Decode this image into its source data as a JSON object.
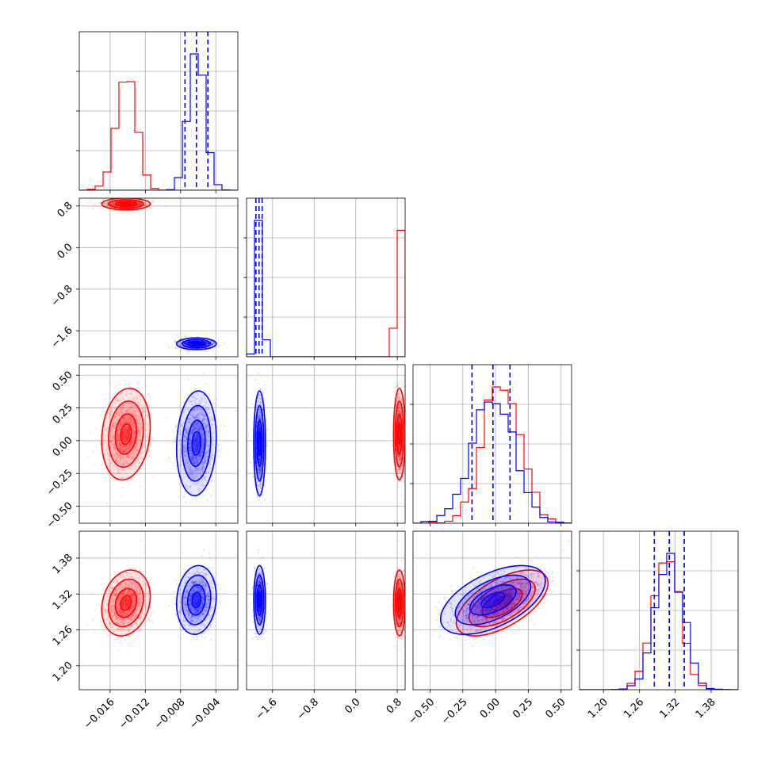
{
  "chart_data": {
    "type": "corner",
    "grid": true,
    "params": [
      {
        "range": [
          -0.0195,
          -0.0015
        ],
        "ticks": [
          -0.016,
          -0.012,
          -0.008,
          -0.004
        ],
        "tick_labels": [
          "−0.016",
          "−0.012",
          "−0.008",
          "−0.004"
        ]
      },
      {
        "range": [
          -2.1,
          0.95
        ],
        "ticks": [
          -1.6,
          -0.8,
          0.0,
          0.8
        ],
        "tick_labels": [
          "−1.6",
          "−0.8",
          "0.0",
          "0.8"
        ]
      },
      {
        "range": [
          -0.63,
          0.58
        ],
        "ticks": [
          -0.5,
          -0.25,
          0.0,
          0.25,
          0.5
        ],
        "tick_labels": [
          "−0.50",
          "−0.25",
          "0.00",
          "0.25",
          "0.50"
        ]
      },
      {
        "range": [
          1.16,
          1.425
        ],
        "ticks": [
          1.2,
          1.26,
          1.32,
          1.38
        ],
        "tick_labels": [
          "1.20",
          "1.26",
          "1.32",
          "1.38"
        ]
      }
    ],
    "series": [
      {
        "color": "#ff0000",
        "mean": [
          -0.0142,
          0.84,
          0.05,
          1.305
        ],
        "sd": [
          0.0011,
          0.045,
          0.14,
          0.022
        ],
        "corr": [
          [
            0,
            2,
            0.15
          ],
          [
            0,
            3,
            0.2
          ],
          [
            2,
            3,
            0.6
          ]
        ],
        "quantiles": null
      },
      {
        "color": "#0000ff",
        "mean": [
          -0.0062,
          -1.85,
          -0.02,
          1.31
        ],
        "sd": [
          0.0009,
          0.045,
          0.16,
          0.023
        ],
        "corr": [
          [
            0,
            2,
            0.1
          ],
          [
            0,
            3,
            0.1
          ],
          [
            2,
            3,
            0.55
          ]
        ],
        "quantiles": [
          [
            -0.0075,
            -0.0062,
            -0.0049
          ],
          [
            -1.92,
            -1.86,
            -1.8
          ],
          [
            -0.18,
            -0.02,
            0.11
          ],
          [
            1.285,
            1.31,
            1.335
          ]
        ]
      }
    ]
  }
}
